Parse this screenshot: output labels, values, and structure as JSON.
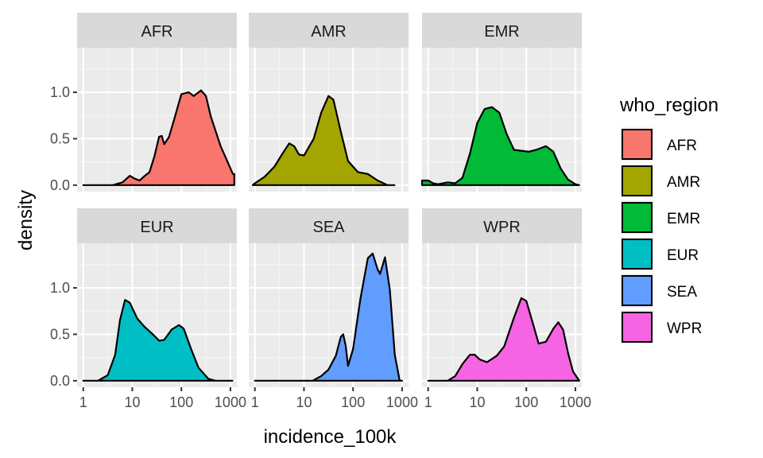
{
  "chart_data": {
    "type": "area",
    "facet_by": "who_region",
    "xlabel": "incidence_100k",
    "ylabel": "density",
    "x_scale": "log10",
    "xlim": [
      0.75,
      1350
    ],
    "ylim": [
      -0.07,
      1.48
    ],
    "x_ticks": [
      {
        "value": 1,
        "label": "1"
      },
      {
        "value": 10,
        "label": "10"
      },
      {
        "value": 100,
        "label": "100"
      },
      {
        "value": 1000,
        "label": "1000"
      }
    ],
    "y_ticks": [
      {
        "value": 0,
        "label": "0.0"
      },
      {
        "value": 0.5,
        "label": "0.5"
      },
      {
        "value": 1,
        "label": "1.0"
      }
    ],
    "grid": true,
    "legend": {
      "title": "who_region",
      "position": "right"
    },
    "panels": [
      {
        "name": "AFR",
        "color": "#F8766D",
        "points": [
          [
            1,
            0
          ],
          [
            4,
            0
          ],
          [
            6.3,
            0.03
          ],
          [
            8.9,
            0.1
          ],
          [
            11.2,
            0.07
          ],
          [
            14.1,
            0.05
          ],
          [
            18,
            0.1
          ],
          [
            22.4,
            0.14
          ],
          [
            28.2,
            0.31
          ],
          [
            35,
            0.52
          ],
          [
            40,
            0.53
          ],
          [
            44.7,
            0.44
          ],
          [
            56,
            0.52
          ],
          [
            70.8,
            0.7
          ],
          [
            100,
            0.98
          ],
          [
            141,
            1.0
          ],
          [
            178,
            0.96
          ],
          [
            251,
            1.02
          ],
          [
            316,
            0.96
          ],
          [
            398,
            0.74
          ],
          [
            631,
            0.42
          ],
          [
            891,
            0.24
          ],
          [
            1122,
            0.12
          ],
          [
            1200,
            0.12
          ],
          [
            1200,
            0
          ]
        ]
      },
      {
        "name": "AMR",
        "color": "#A3A500",
        "points": [
          [
            0.9,
            0
          ],
          [
            1,
            0.02
          ],
          [
            1.58,
            0.09
          ],
          [
            2.51,
            0.2
          ],
          [
            3.55,
            0.33
          ],
          [
            5,
            0.45
          ],
          [
            6.3,
            0.42
          ],
          [
            7.9,
            0.33
          ],
          [
            10,
            0.32
          ],
          [
            15.8,
            0.5
          ],
          [
            22.4,
            0.78
          ],
          [
            31.6,
            0.96
          ],
          [
            39.8,
            0.92
          ],
          [
            56,
            0.58
          ],
          [
            79,
            0.26
          ],
          [
            126,
            0.14
          ],
          [
            200,
            0.12
          ],
          [
            316,
            0.05
          ],
          [
            501,
            0
          ],
          [
            700,
            0
          ]
        ]
      },
      {
        "name": "EMR",
        "color": "#00BA38",
        "points": [
          [
            0.75,
            0
          ],
          [
            0.75,
            0.05
          ],
          [
            1,
            0.05
          ],
          [
            1.26,
            0.02
          ],
          [
            1.58,
            0.01
          ],
          [
            2.51,
            0.03
          ],
          [
            3.55,
            0.02
          ],
          [
            5,
            0.08
          ],
          [
            7.1,
            0.34
          ],
          [
            10,
            0.67
          ],
          [
            14.1,
            0.82
          ],
          [
            20,
            0.84
          ],
          [
            28.2,
            0.78
          ],
          [
            39.8,
            0.55
          ],
          [
            56,
            0.38
          ],
          [
            79,
            0.37
          ],
          [
            112,
            0.36
          ],
          [
            158,
            0.38
          ],
          [
            251,
            0.42
          ],
          [
            355,
            0.36
          ],
          [
            501,
            0.18
          ],
          [
            708,
            0.06
          ],
          [
            1000,
            0.01
          ],
          [
            1200,
            0
          ]
        ]
      },
      {
        "name": "EUR",
        "color": "#00BFC4",
        "points": [
          [
            1,
            0
          ],
          [
            2,
            0
          ],
          [
            3.16,
            0.06
          ],
          [
            4.47,
            0.28
          ],
          [
            5.6,
            0.65
          ],
          [
            7.1,
            0.87
          ],
          [
            8.9,
            0.84
          ],
          [
            12.6,
            0.67
          ],
          [
            17.8,
            0.58
          ],
          [
            25.1,
            0.51
          ],
          [
            35.5,
            0.43
          ],
          [
            44.7,
            0.44
          ],
          [
            63,
            0.55
          ],
          [
            89,
            0.6
          ],
          [
            112,
            0.56
          ],
          [
            158,
            0.34
          ],
          [
            224,
            0.14
          ],
          [
            355,
            0.02
          ],
          [
            501,
            0
          ],
          [
            1100,
            0
          ]
        ]
      },
      {
        "name": "SEA",
        "color": "#619CFF",
        "points": [
          [
            1,
            0
          ],
          [
            15,
            0
          ],
          [
            22.4,
            0.05
          ],
          [
            31.6,
            0.12
          ],
          [
            44.7,
            0.27
          ],
          [
            56,
            0.47
          ],
          [
            63,
            0.5
          ],
          [
            70.8,
            0.38
          ],
          [
            79,
            0.16
          ],
          [
            100,
            0.34
          ],
          [
            141,
            0.88
          ],
          [
            200,
            1.32
          ],
          [
            251,
            1.37
          ],
          [
            316,
            1.2
          ],
          [
            355,
            1.15
          ],
          [
            447,
            1.33
          ],
          [
            562,
            0.98
          ],
          [
            708,
            0.28
          ],
          [
            891,
            0
          ],
          [
            1000,
            0
          ]
        ]
      },
      {
        "name": "WPR",
        "color": "#F564E3",
        "points": [
          [
            1,
            0
          ],
          [
            2.5,
            0
          ],
          [
            3.55,
            0.05
          ],
          [
            5,
            0.18
          ],
          [
            7.1,
            0.28
          ],
          [
            8.9,
            0.28
          ],
          [
            11.2,
            0.23
          ],
          [
            15.8,
            0.2
          ],
          [
            25.1,
            0.27
          ],
          [
            35.5,
            0.37
          ],
          [
            56,
            0.68
          ],
          [
            79,
            0.89
          ],
          [
            100,
            0.86
          ],
          [
            141,
            0.59
          ],
          [
            178,
            0.4
          ],
          [
            251,
            0.42
          ],
          [
            355,
            0.56
          ],
          [
            447,
            0.63
          ],
          [
            562,
            0.55
          ],
          [
            708,
            0.3
          ],
          [
            891,
            0.1
          ],
          [
            1200,
            0
          ]
        ]
      }
    ]
  }
}
